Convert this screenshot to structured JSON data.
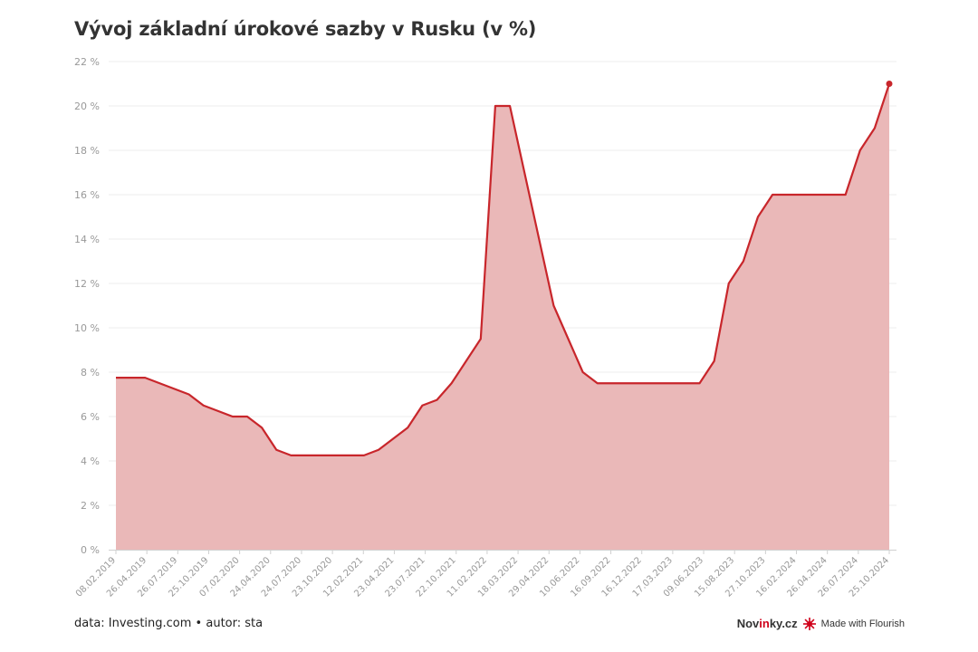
{
  "title": "Vývoj základní úrokové sazby v Rusku (v %)",
  "footer": {
    "source": "data: Investing.com • autor: sta",
    "brand_prefix": "Nov",
    "brand_red": "in",
    "brand_suffix": "ky.cz",
    "made_with": "Made with Flourish"
  },
  "chart_data": {
    "type": "area",
    "title": "Vývoj základní úrokové sazby v Rusku (v %)",
    "x_tick_labels": [
      "08.02.2019",
      "26.04.2019",
      "26.07.2019",
      "25.10.2019",
      "07.02.2020",
      "24.04.2020",
      "24.07.2020",
      "23.10.2020",
      "12.02.2021",
      "23.04.2021",
      "23.07.2021",
      "22.10.2021",
      "11.02.2022",
      "18.03.2022",
      "29.04.2022",
      "10.06.2022",
      "16.09.2022",
      "16.12.2022",
      "17.03.2023",
      "09.06.2023",
      "15.08.2023",
      "27.10.2023",
      "16.02.2024",
      "26.04.2024",
      "26.07.2024",
      "25.10.2024"
    ],
    "y_ticks": [
      0,
      2,
      4,
      6,
      8,
      10,
      12,
      14,
      16,
      18,
      20,
      22
    ],
    "y_tick_suffix": " %",
    "ylim": [
      0,
      22
    ],
    "grid": true,
    "colors": {
      "line": "#c8262b",
      "fill": "#eab8b8",
      "grid": "#ececec",
      "tick": "#999999",
      "axis": "#d0d0d0"
    },
    "series": [
      {
        "values": [
          7.75,
          7.75,
          7.75,
          7.5,
          7.25,
          7,
          6.5,
          6.25,
          6,
          6,
          5.5,
          4.5,
          4.25,
          4.25,
          4.25,
          4.25,
          4.25,
          4.25,
          4.5,
          5,
          5.5,
          6.5,
          6.75,
          7.5,
          8.5,
          9.5,
          20,
          20,
          17,
          14,
          11,
          9.5,
          8,
          7.5,
          7.5,
          7.5,
          7.5,
          7.5,
          7.5,
          7.5,
          7.5,
          8.5,
          12,
          13,
          15,
          16,
          16,
          16,
          16,
          16,
          16,
          18,
          19,
          21
        ]
      }
    ]
  }
}
